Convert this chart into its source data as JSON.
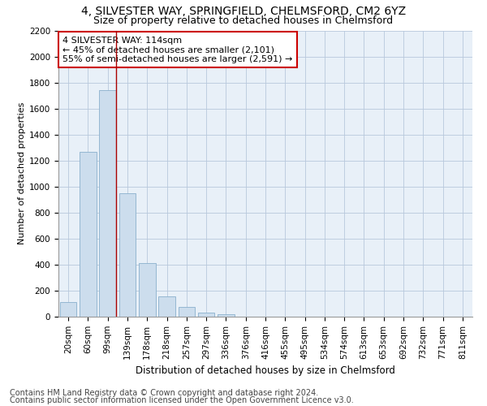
{
  "title1": "4, SILVESTER WAY, SPRINGFIELD, CHELMSFORD, CM2 6YZ",
  "title2": "Size of property relative to detached houses in Chelmsford",
  "xlabel": "Distribution of detached houses by size in Chelmsford",
  "ylabel": "Number of detached properties",
  "categories": [
    "20sqm",
    "60sqm",
    "99sqm",
    "139sqm",
    "178sqm",
    "218sqm",
    "257sqm",
    "297sqm",
    "336sqm",
    "376sqm",
    "416sqm",
    "455sqm",
    "495sqm",
    "534sqm",
    "574sqm",
    "613sqm",
    "653sqm",
    "692sqm",
    "732sqm",
    "771sqm",
    "811sqm"
  ],
  "values": [
    110,
    1270,
    1740,
    950,
    410,
    155,
    75,
    30,
    18,
    0,
    0,
    0,
    0,
    0,
    0,
    0,
    0,
    0,
    0,
    0,
    0
  ],
  "bar_color": "#ccdded",
  "bar_edge_color": "#8ab0cc",
  "vline_color": "#aa0000",
  "annotation_text": "4 SILVESTER WAY: 114sqm\n← 45% of detached houses are smaller (2,101)\n55% of semi-detached houses are larger (2,591) →",
  "annotation_box_color": "#ffffff",
  "annotation_box_edge": "#cc0000",
  "ylim": [
    0,
    2200
  ],
  "yticks": [
    0,
    200,
    400,
    600,
    800,
    1000,
    1200,
    1400,
    1600,
    1800,
    2000,
    2200
  ],
  "footnote1": "Contains HM Land Registry data © Crown copyright and database right 2024.",
  "footnote2": "Contains public sector information licensed under the Open Government Licence v3.0.",
  "bg_color": "#ffffff",
  "plot_bg_color": "#e8f0f8",
  "grid_color": "#b8c8dc",
  "title1_fontsize": 10,
  "title2_fontsize": 9,
  "xlabel_fontsize": 8.5,
  "ylabel_fontsize": 8,
  "tick_fontsize": 7.5,
  "annot_fontsize": 8,
  "footnote_fontsize": 7
}
